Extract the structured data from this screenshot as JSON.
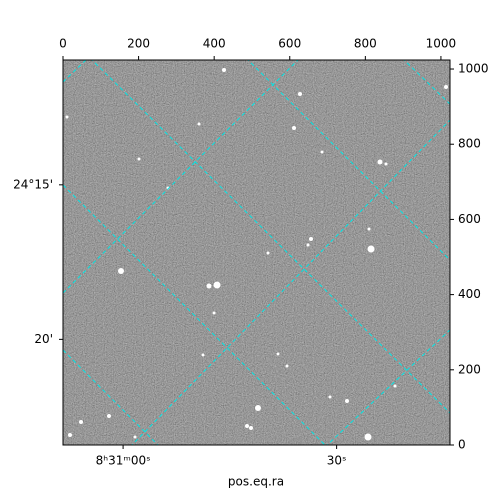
{
  "chart_data": {
    "type": "image",
    "xlabel": "pos.eq.ra",
    "xlim": [
      0,
      1024
    ],
    "ylim": [
      0,
      1024
    ],
    "xticks": [
      0,
      200,
      400,
      600,
      800,
      1000
    ],
    "yticks": [
      0,
      200,
      400,
      600,
      800,
      1000
    ],
    "wcs_yticks": [
      {
        "value": 692,
        "label": "24°15'"
      },
      {
        "value": 281,
        "label": "20'"
      }
    ],
    "wcs_xticks": [
      {
        "value": 159,
        "label": "8ʰ31ᵐ00ˢ"
      },
      {
        "value": 724,
        "label": "30ˢ"
      }
    ],
    "grid_color": "#00e5e5"
  }
}
